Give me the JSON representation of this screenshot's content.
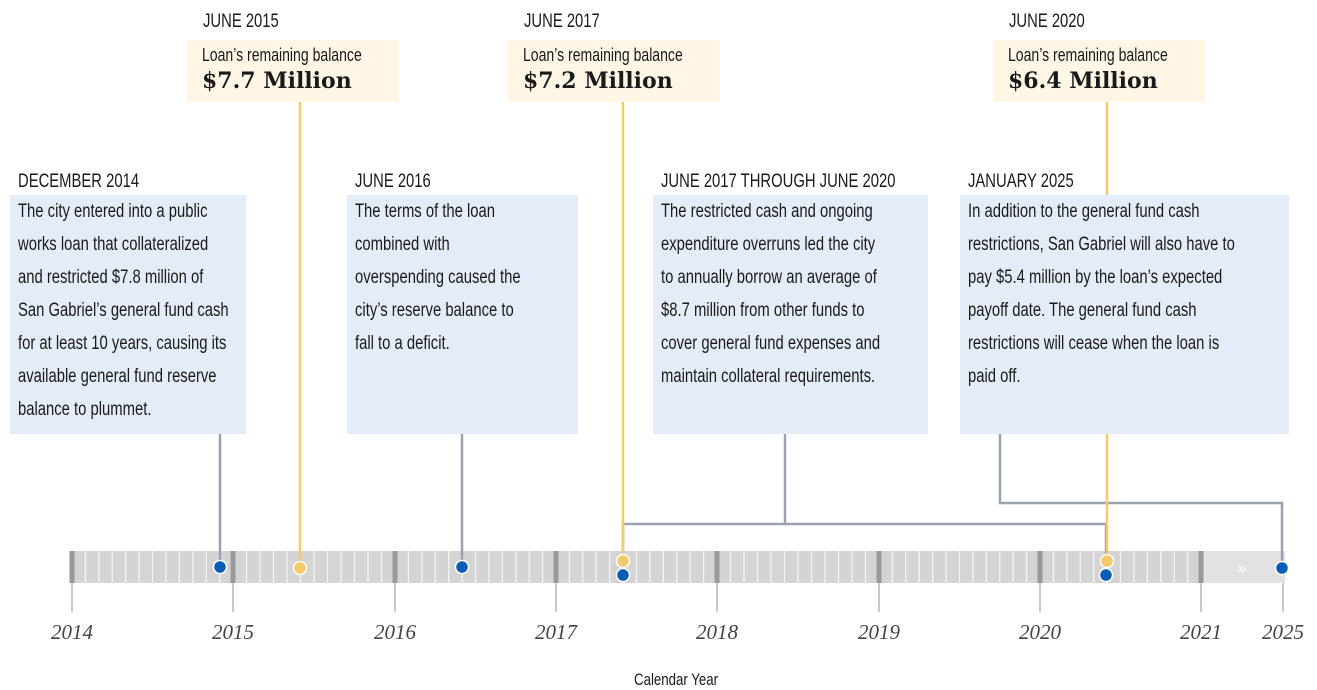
{
  "balance_callouts": [
    {
      "date": "JUNE 2015",
      "label": "Loan’s remaining balance",
      "amount": "$7.7 Million"
    },
    {
      "date": "JUNE 2017",
      "label": "Loan’s remaining balance",
      "amount": "$7.2 Million"
    },
    {
      "date": "JUNE 2020",
      "label": "Loan’s remaining balance",
      "amount": "$6.4 Million"
    }
  ],
  "events": [
    {
      "date": "DECEMBER 2014",
      "text_lines": [
        "The city entered into a public",
        "works loan that collateralized",
        "and restricted $7.8 million of",
        "San Gabriel’s general fund cash",
        "for at least 10 years, causing its",
        "available general fund reserve",
        "balance to plummet."
      ]
    },
    {
      "date": "JUNE 2016",
      "text_lines": [
        "The terms of the loan",
        "combined with",
        "overspending caused the",
        "city’s reserve balance to",
        "fall to a deficit."
      ]
    },
    {
      "date": "JUNE 2017 THROUGH JUNE 2020",
      "text_lines": [
        "The restricted cash and ongoing",
        "expenditure overruns led the city",
        "to annually borrow an average of",
        "$8.7 million from other funds to",
        "cover general fund expenses and",
        "maintain collateral requirements."
      ]
    },
    {
      "date": "JANUARY 2025",
      "text_lines": [
        "In addition to the general fund cash",
        "restrictions, San Gabriel will also have to",
        "pay $5.4 million by the loan’s expected",
        "payoff date.  The general fund cash",
        "restrictions will cease when the loan is",
        "paid off."
      ]
    }
  ],
  "axis": {
    "years": [
      "2014",
      "2015",
      "2016",
      "2017",
      "2018",
      "2019",
      "2020",
      "2021",
      "2025"
    ],
    "label": "Calendar Year"
  }
}
